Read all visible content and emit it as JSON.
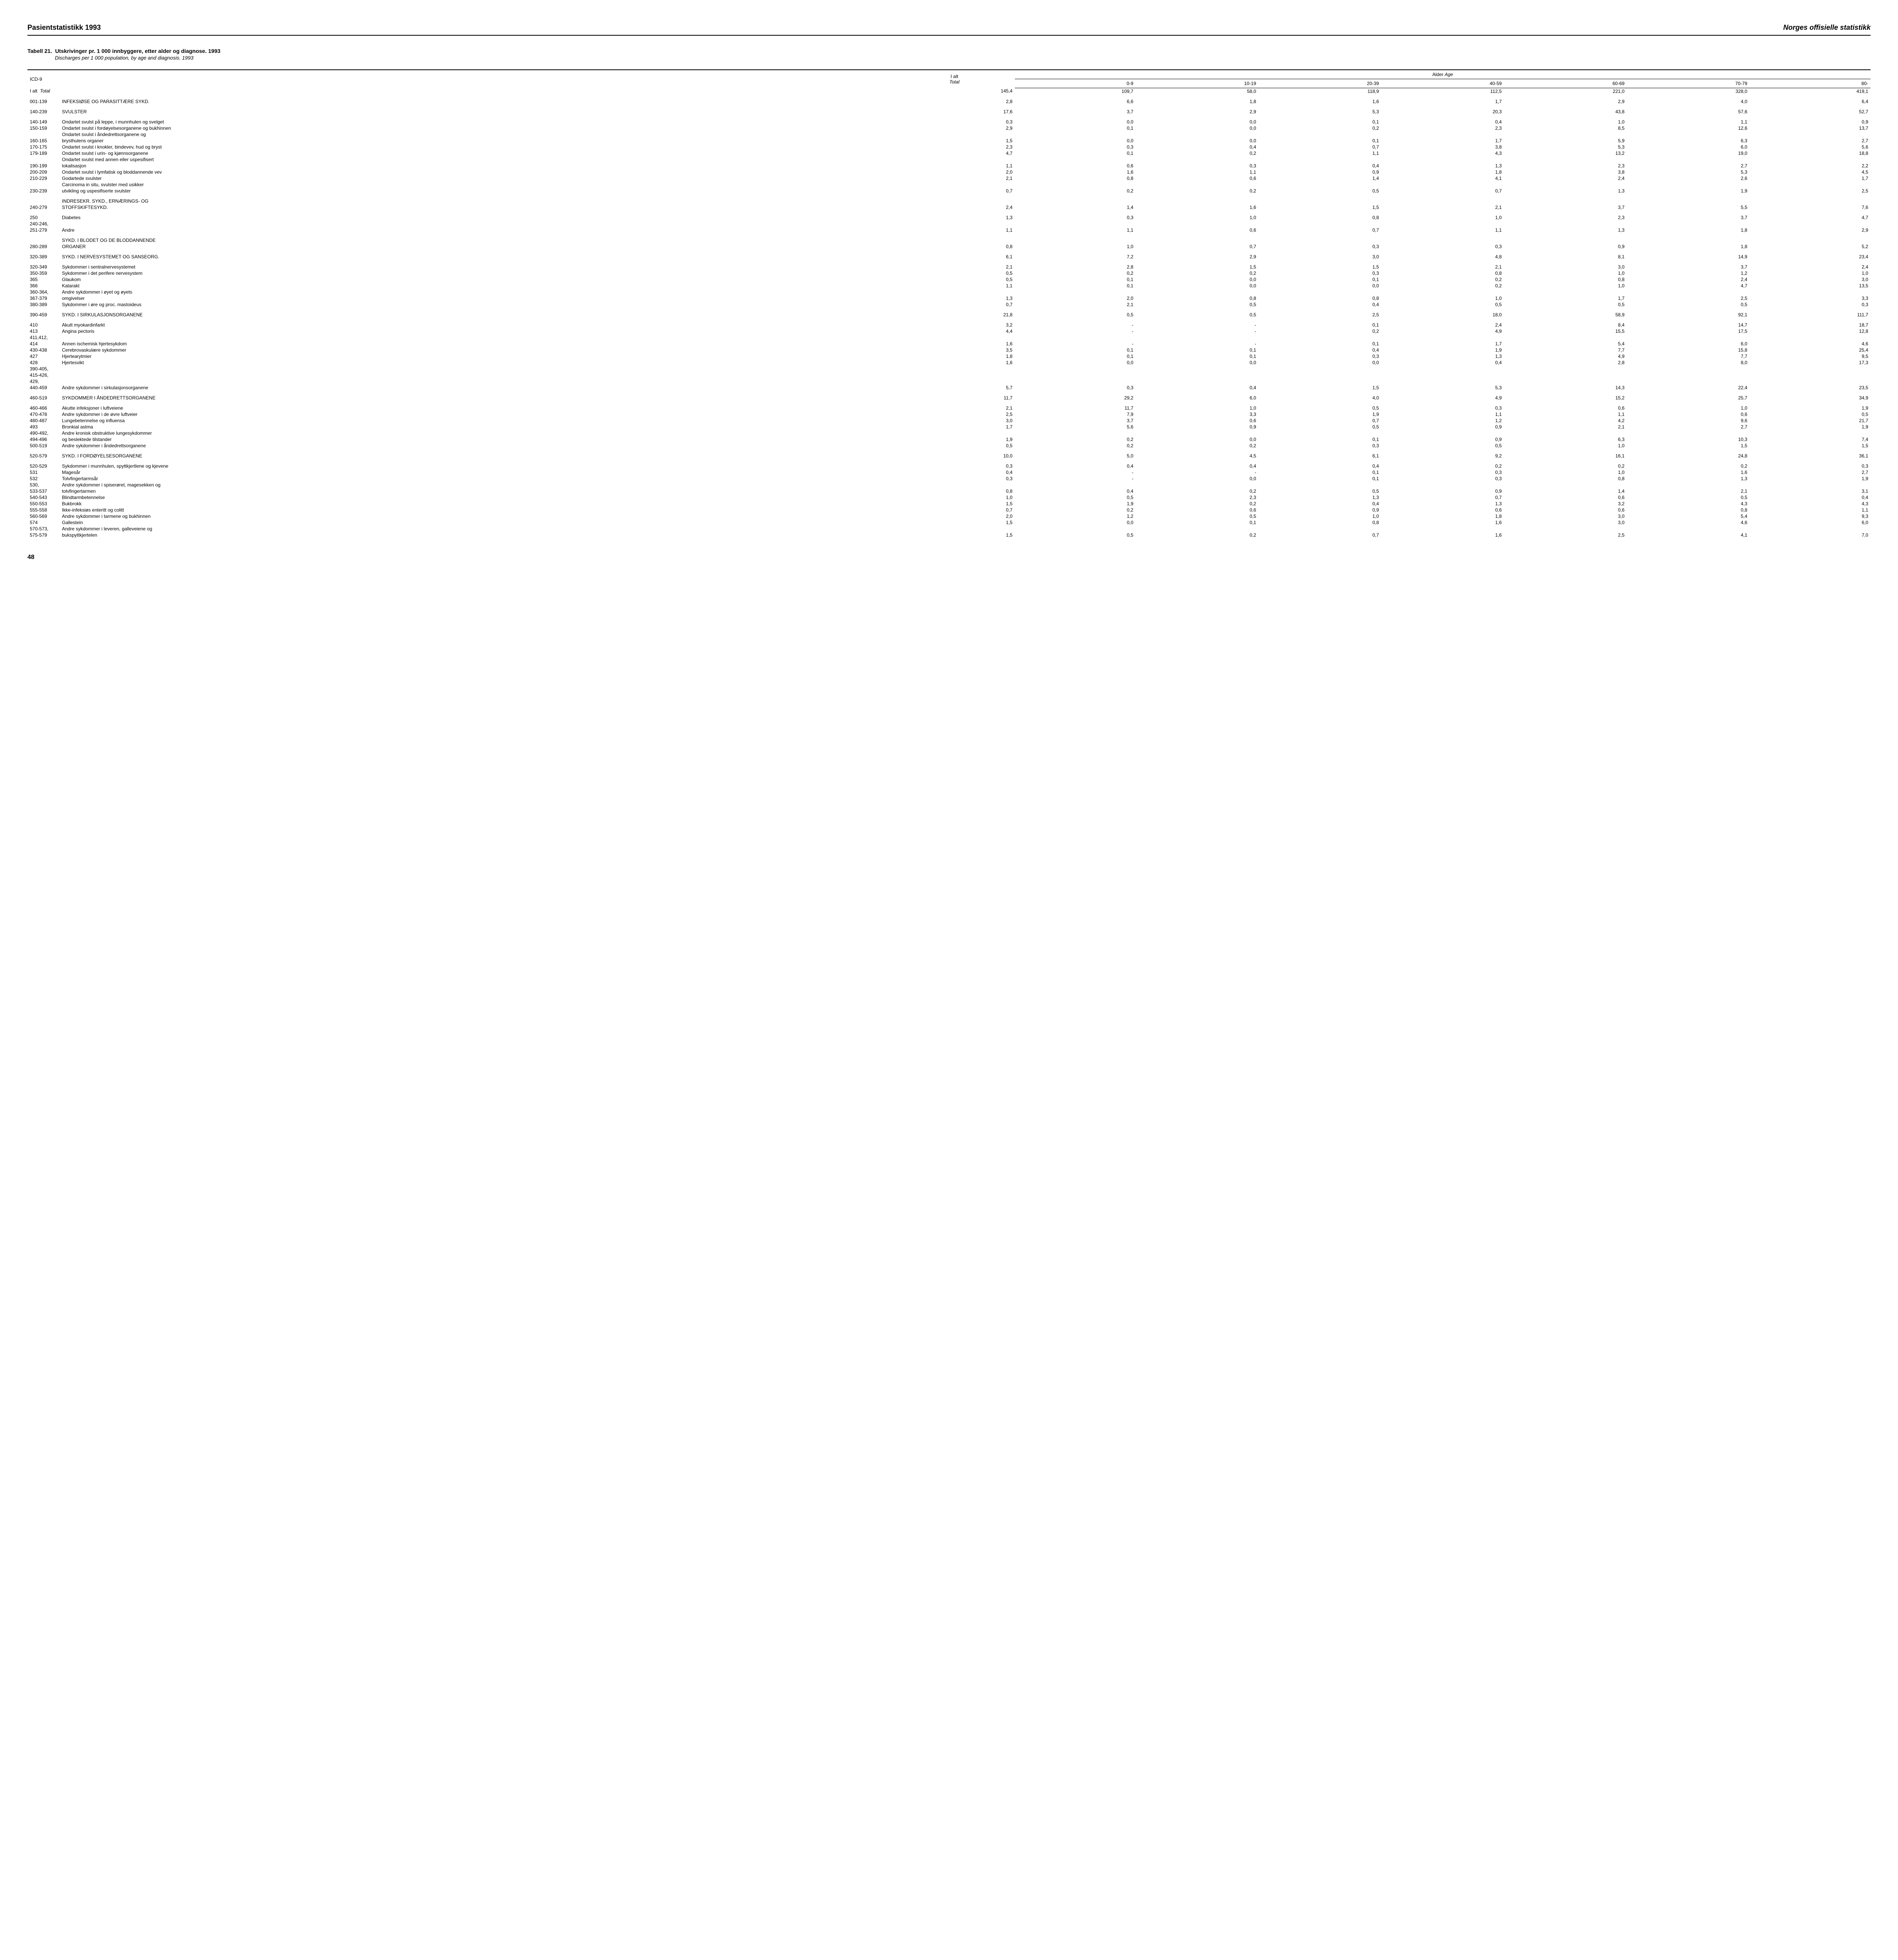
{
  "header": {
    "left": "Pasientstatistikk 1993",
    "right": "Norges offisielle statistikk"
  },
  "title": {
    "label": "Tabell 21.",
    "main": "Utskrivinger pr. 1 000 innbyggere, etter alder og diagnose. 1993",
    "sub": "Discharges per 1 000 population, by age and diagnosis. 1993"
  },
  "columns": {
    "icd": "ICD-9",
    "total_label": "I alt",
    "total_sub": "Total",
    "age_header": "Alder",
    "age_header_italic": "Age",
    "ages": [
      "0-9",
      "10-19",
      "20-39",
      "40-59",
      "60-69",
      "70-79",
      "80-"
    ]
  },
  "rows": [
    {
      "code": "I alt",
      "italicTail": "Total",
      "desc": "",
      "v": [
        "145,4",
        "109,7",
        "58,0",
        "118,9",
        "112,5",
        "221,0",
        "328,0",
        "419,1"
      ],
      "bold": false,
      "totalRow": true
    },
    {
      "spacer": true
    },
    {
      "code": "001-139",
      "desc": "INFEKSIØSE OG PARASITTÆRE SYKD.",
      "v": [
        "2,8",
        "6,6",
        "1,8",
        "1,6",
        "1,7",
        "2,9",
        "4,0",
        "6,4"
      ]
    },
    {
      "spacer": true
    },
    {
      "code": "140-239",
      "desc": "SVULSTER",
      "v": [
        "17,6",
        "3,7",
        "2,9",
        "5,3",
        "20,3",
        "43,8",
        "57,6",
        "52,7"
      ]
    },
    {
      "spacer": true
    },
    {
      "code": "140-149",
      "desc": "Ondartet svulst på leppe, i munnhulen og svelget",
      "v": [
        "0,3",
        "0,0",
        "0,0",
        "0,1",
        "0,4",
        "1,0",
        "1,1",
        "0,9"
      ]
    },
    {
      "code": "150-159",
      "desc": "Ondartet svulst i fordøyelsesorganene og bukhinnen",
      "v": [
        "2,9",
        "0,1",
        "0,0",
        "0,2",
        "2,3",
        "8,5",
        "12,6",
        "13,7"
      ]
    },
    {
      "code": "",
      "desc": "Ondartet svulst i åndedrettsorganene og",
      "v": []
    },
    {
      "code": "160-165",
      "desc": "brysthulens organer",
      "v": [
        "1,5",
        "0,0",
        "0,0",
        "0,1",
        "1,7",
        "5,9",
        "6,3",
        "2,7"
      ]
    },
    {
      "code": "170-175",
      "desc": "Ondartet svulst i knokler, bindevev, hud og bryst",
      "v": [
        "2,3",
        "0,3",
        "0,4",
        "0,7",
        "3,8",
        "5,3",
        "6,0",
        "5,6"
      ]
    },
    {
      "code": "179-189",
      "desc": "Ondartet svulst i urin- og kjønnsorganene",
      "v": [
        "4,7",
        "0,1",
        "0,2",
        "1,1",
        "4,3",
        "13,2",
        "19,0",
        "18,8"
      ]
    },
    {
      "code": "",
      "desc": "Ondartet svulst med annen eller uspesifisert",
      "v": []
    },
    {
      "code": "190-199",
      "desc": "lokalisasjon",
      "v": [
        "1,1",
        "0,6",
        "0,3",
        "0,4",
        "1,3",
        "2,3",
        "2,7",
        "2,2"
      ]
    },
    {
      "code": "200-209",
      "desc": "Ondartet svulst i lymfatisk og bloddannende vev",
      "v": [
        "2,0",
        "1,6",
        "1,1",
        "0,9",
        "1,8",
        "3,8",
        "5,3",
        "4,5"
      ]
    },
    {
      "code": "210-229",
      "desc": "Godartede svulster",
      "v": [
        "2,1",
        "0,8",
        "0,6",
        "1,4",
        "4,1",
        "2,4",
        "2,6",
        "1,7"
      ]
    },
    {
      "code": "",
      "desc": "Carcinoma in situ, svulster med usikker",
      "v": []
    },
    {
      "code": "230-239",
      "desc": "utvikling og uspesifiserte svulster",
      "v": [
        "0,7",
        "0,2",
        "0,2",
        "0,5",
        "0,7",
        "1,3",
        "1,9",
        "2,5"
      ]
    },
    {
      "spacer": true
    },
    {
      "code": "",
      "desc": "INDRESEKR. SYKD., ERNÆRINGS- OG",
      "v": []
    },
    {
      "code": "240-279",
      "desc": "STOFFSKIFTESYKD.",
      "v": [
        "2,4",
        "1,4",
        "1,6",
        "1,5",
        "2,1",
        "3,7",
        "5,5",
        "7,6"
      ]
    },
    {
      "spacer": true
    },
    {
      "code": "250",
      "desc": "Diabetes",
      "v": [
        "1,3",
        "0,3",
        "1,0",
        "0,8",
        "1,0",
        "2,3",
        "3,7",
        "4,7"
      ]
    },
    {
      "code": "240-246,",
      "desc": "",
      "v": []
    },
    {
      "code": "251-279",
      "desc": "Andre",
      "v": [
        "1,1",
        "1,1",
        "0,6",
        "0,7",
        "1,1",
        "1,3",
        "1,8",
        "2,9"
      ]
    },
    {
      "spacer": true
    },
    {
      "code": "",
      "desc": "SYKD. I BLODET OG DE BLODDANNENDE",
      "v": []
    },
    {
      "code": "280-289",
      "desc": "ORGANER",
      "v": [
        "0,8",
        "1,0",
        "0,7",
        "0,3",
        "0,3",
        "0,9",
        "1,8",
        "5,2"
      ]
    },
    {
      "spacer": true
    },
    {
      "code": "320-389",
      "desc": "SYKD. I NERVESYSTEMET OG SANSEORG.",
      "v": [
        "6,1",
        "7,2",
        "2,9",
        "3,0",
        "4,8",
        "8,1",
        "14,9",
        "23,4"
      ]
    },
    {
      "spacer": true
    },
    {
      "code": "320-349",
      "desc": "Sykdommer i sentralnervesystemet",
      "v": [
        "2,1",
        "2,8",
        "1,5",
        "1,5",
        "2,1",
        "3,0",
        "3,7",
        "2,4"
      ]
    },
    {
      "code": "350-359",
      "desc": "Sykdommer i det perifere nervesystem",
      "v": [
        "0,5",
        "0,2",
        "0,2",
        "0,3",
        "0,8",
        "1,0",
        "1,2",
        "1,0"
      ]
    },
    {
      "code": "365",
      "desc": "Glaukom",
      "v": [
        "0,5",
        "0,1",
        "0,0",
        "0,1",
        "0,2",
        "0,8",
        "2,4",
        "3,0"
      ]
    },
    {
      "code": "366",
      "desc": "Katarakt",
      "v": [
        "1,1",
        "0,1",
        "0,0",
        "0,0",
        "0,2",
        "1,0",
        "4,7",
        "13,5"
      ]
    },
    {
      "code": "360-364,",
      "desc": "Andre sykdommer i øyet og øyets",
      "v": []
    },
    {
      "code": "367-379",
      "desc": "omgivelser",
      "v": [
        "1,3",
        "2,0",
        "0,8",
        "0,8",
        "1,0",
        "1,7",
        "2,5",
        "3,3"
      ]
    },
    {
      "code": "380-389",
      "desc": "Sykdommer i øre og proc. mastoideus",
      "v": [
        "0,7",
        "2,1",
        "0,5",
        "0,4",
        "0,5",
        "0,5",
        "0,5",
        "0,3"
      ]
    },
    {
      "spacer": true
    },
    {
      "code": "390-459",
      "desc": "SYKD. I SIRKULASJONSORGANENE",
      "v": [
        "21,8",
        "0,5",
        "0,5",
        "2,5",
        "18,0",
        "58,9",
        "92,1",
        "111,7"
      ]
    },
    {
      "spacer": true
    },
    {
      "code": "410",
      "desc": "Akutt myokardinfarkt",
      "v": [
        "3,2",
        "-",
        "-",
        "0,1",
        "2,4",
        "8,4",
        "14,7",
        "18,7"
      ]
    },
    {
      "code": "413",
      "desc": "Angina pectoris",
      "v": [
        "4,4",
        "-",
        "-",
        "0,2",
        "4,9",
        "15,5",
        "17,5",
        "12,8"
      ]
    },
    {
      "code": "411,412,",
      "desc": "",
      "v": []
    },
    {
      "code": "414",
      "desc": "Annen ischemisk hjertesykdom",
      "v": [
        "1,6",
        "-",
        "-",
        "0,1",
        "1,7",
        "5,4",
        "6,0",
        "4,6"
      ]
    },
    {
      "code": "430-438",
      "desc": "Cerebrovaskulære sykdommer",
      "v": [
        "3,5",
        "0,1",
        "0,1",
        "0,4",
        "1,9",
        "7,7",
        "15,8",
        "25,4"
      ]
    },
    {
      "code": "427",
      "desc": "Hjertearytmier",
      "v": [
        "1,8",
        "0,1",
        "0,1",
        "0,3",
        "1,3",
        "4,9",
        "7,7",
        "9,5"
      ]
    },
    {
      "code": "428",
      "desc": "Hjertesvikt",
      "v": [
        "1,6",
        "0,0",
        "0,0",
        "0,0",
        "0,4",
        "2,8",
        "8,0",
        "17,3"
      ]
    },
    {
      "code": "390-405,",
      "desc": "",
      "v": []
    },
    {
      "code": "415-426,",
      "desc": "",
      "v": []
    },
    {
      "code": "429,",
      "desc": "",
      "v": []
    },
    {
      "code": "440-459",
      "desc": "Andre sykdommer i sirkulasjonsorganene",
      "v": [
        "5,7",
        "0,3",
        "0,4",
        "1,5",
        "5,3",
        "14,3",
        "22,4",
        "23,5"
      ]
    },
    {
      "spacer": true
    },
    {
      "code": "460-519",
      "desc": "SYKDOMMER I ÅNDEDRETTSORGANENE",
      "v": [
        "11,7",
        "29,2",
        "6,0",
        "4,0",
        "4,9",
        "15,2",
        "25,7",
        "34,9"
      ]
    },
    {
      "spacer": true
    },
    {
      "code": "460-466",
      "desc": "Akutte infeksjoner i luftveiene",
      "v": [
        "2,1",
        "11,7",
        "1,0",
        "0,5",
        "0,3",
        "0,6",
        "1,0",
        "1,9"
      ]
    },
    {
      "code": "470-478",
      "desc": "Andre sykdommer i de øvre luftveier",
      "v": [
        "2,5",
        "7,9",
        "3,3",
        "1,9",
        "1,1",
        "1,1",
        "0,6",
        "0,5"
      ]
    },
    {
      "code": "480-487",
      "desc": "Lungebetennelse og influensa",
      "v": [
        "3,0",
        "3,7",
        "0,6",
        "0,7",
        "1,2",
        "4,2",
        "9,6",
        "21,7"
      ]
    },
    {
      "code": "493",
      "desc": "Bronkial astma",
      "v": [
        "1,7",
        "5,6",
        "0,9",
        "0,5",
        "0,9",
        "2,1",
        "2,7",
        "1,9"
      ]
    },
    {
      "code": "490-492,",
      "desc": "Andre kronisk obstruktive lungesykdommer",
      "v": []
    },
    {
      "code": "494-496",
      "desc": "og beslektede tilstander",
      "v": [
        "1,9",
        "0,2",
        "0,0",
        "0,1",
        "0,9",
        "6,3",
        "10,3",
        "7,4"
      ]
    },
    {
      "code": "500-519",
      "desc": "Andre sykdommer i åndedrettsorganene",
      "v": [
        "0,5",
        "0,2",
        "0,2",
        "0,3",
        "0,5",
        "1,0",
        "1,5",
        "1,5"
      ]
    },
    {
      "spacer": true
    },
    {
      "code": "520-579",
      "desc": "SYKD. I FORDØYELSESORGANENE",
      "v": [
        "10,0",
        "5,0",
        "4,5",
        "6,1",
        "9,2",
        "16,1",
        "24,8",
        "36,1"
      ]
    },
    {
      "spacer": true
    },
    {
      "code": "520-529",
      "desc": "Sykdommer i munnhulen, spyttkjertlene og kjevene",
      "v": [
        "0,3",
        "0,4",
        "0,4",
        "0,4",
        "0,2",
        "0,2",
        "0,2",
        "0,3"
      ]
    },
    {
      "code": "531",
      "desc": "Magesår",
      "v": [
        "0,4",
        "-",
        "-",
        "0,1",
        "0,3",
        "1,0",
        "1,6",
        "2,7"
      ]
    },
    {
      "code": "532",
      "desc": "Tolvfingertarmsår",
      "v": [
        "0,3",
        "-",
        "0,0",
        "0,1",
        "0,3",
        "0,8",
        "1,3",
        "1,9"
      ]
    },
    {
      "code": "530,",
      "desc": "Andre sykdommer i spiserøret, magesekken og",
      "v": []
    },
    {
      "code": "533-537",
      "desc": "tolvfingertarmen",
      "v": [
        "0,8",
        "0,4",
        "0,2",
        "0,5",
        "0,9",
        "1,4",
        "2,1",
        "3,1"
      ]
    },
    {
      "code": "540-543",
      "desc": "Blindtarmbetennelse",
      "v": [
        "1,0",
        "0,5",
        "2,3",
        "1,3",
        "0,7",
        "0,6",
        "0,5",
        "0,4"
      ]
    },
    {
      "code": "550-553",
      "desc": "Bukbrokk",
      "v": [
        "1,5",
        "1,9",
        "0,2",
        "0,4",
        "1,3",
        "3,2",
        "4,3",
        "4,3"
      ]
    },
    {
      "code": "555-558",
      "desc": "Ikke-infeksiøs enteritt og colitt",
      "v": [
        "0,7",
        "0,2",
        "0,6",
        "0,9",
        "0,6",
        "0,6",
        "0,8",
        "1,1"
      ]
    },
    {
      "code": "560-569",
      "desc": "Andre sykdommer i tarmene og bukhinnen",
      "v": [
        "2,0",
        "1,2",
        "0,5",
        "1,0",
        "1,8",
        "3,0",
        "5,4",
        "9,3"
      ]
    },
    {
      "code": "574",
      "desc": "Gallestein",
      "v": [
        "1,5",
        "0,0",
        "0,1",
        "0,8",
        "1,6",
        "3,0",
        "4,6",
        "6,0"
      ]
    },
    {
      "code": "570-573,",
      "desc": "Andre sykdommer i leveren, galleveiene og",
      "v": []
    },
    {
      "code": "575-579",
      "desc": "bukspyttkjertelen",
      "v": [
        "1,5",
        "0,5",
        "0,2",
        "0,7",
        "1,6",
        "2,5",
        "4,1",
        "7,0"
      ]
    }
  ],
  "pagenum": "48"
}
